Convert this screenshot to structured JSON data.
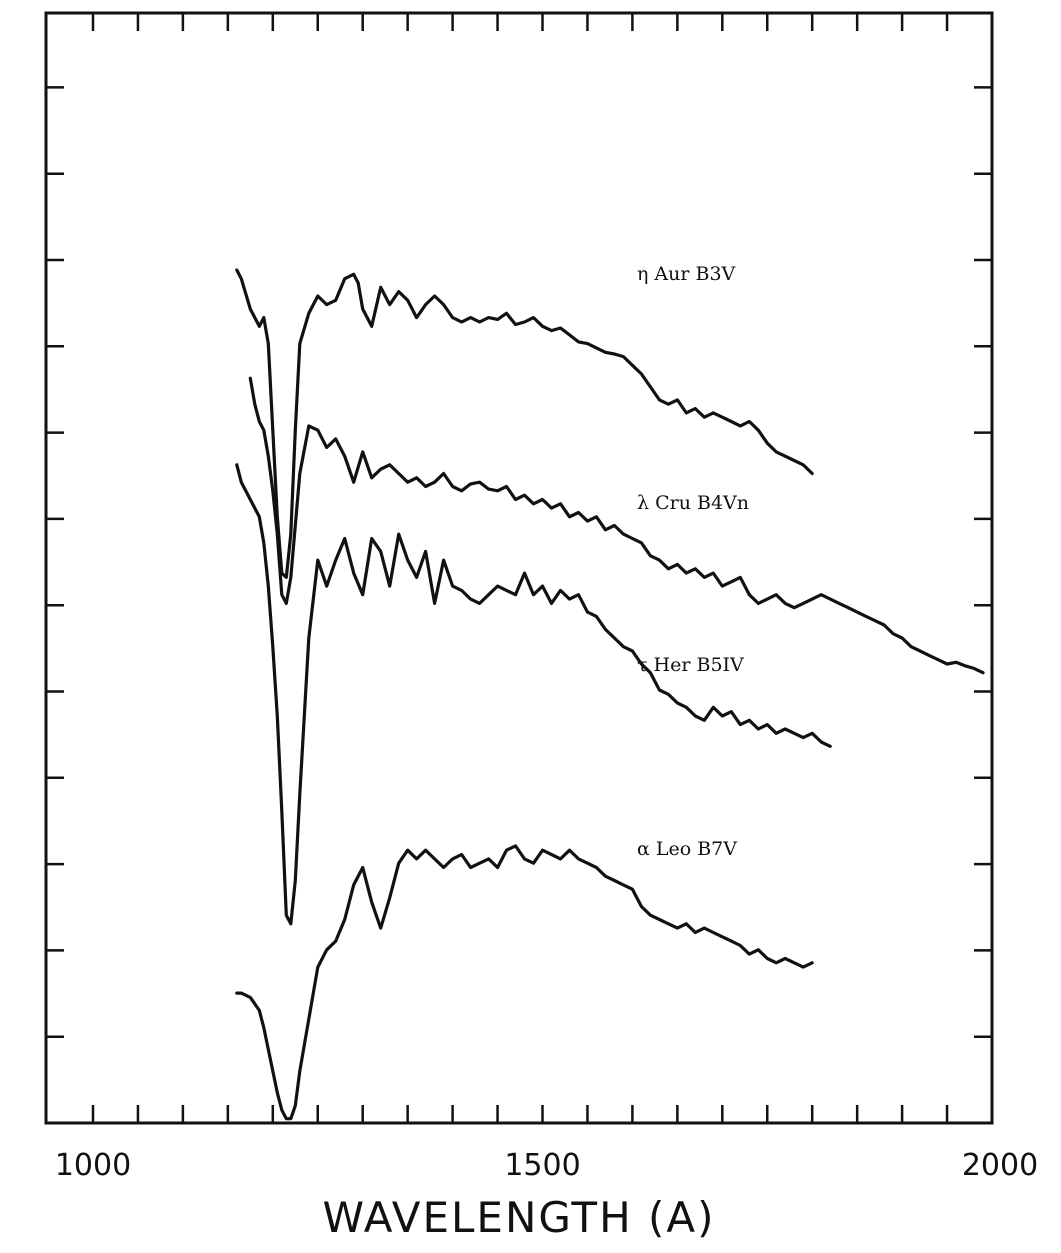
{
  "chart_data": {
    "type": "line",
    "title": "",
    "xlabel": "WAVELENGTH (A)",
    "ylabel": "",
    "xlim": [
      1000,
      2000
    ],
    "xticks_labeled": [
      1000,
      1500,
      2000
    ],
    "x_minor_tick_step": 50,
    "y_ticks": 12,
    "grid": false,
    "legend": "inline labels",
    "series": [
      {
        "name": "η Aur B3V",
        "x": [
          1160,
          1165,
          1175,
          1185,
          1190,
          1195,
          1200,
          1205,
          1210,
          1215,
          1220,
          1225,
          1230,
          1240,
          1250,
          1260,
          1270,
          1280,
          1290,
          1295,
          1300,
          1310,
          1320,
          1330,
          1340,
          1350,
          1360,
          1370,
          1380,
          1390,
          1400,
          1410,
          1420,
          1430,
          1440,
          1450,
          1460,
          1470,
          1480,
          1490,
          1500,
          1510,
          1520,
          1530,
          1540,
          1550,
          1560,
          1570,
          1580,
          1590,
          1600,
          1610,
          1620,
          1630,
          1640,
          1650,
          1660,
          1670,
          1680,
          1690,
          1700,
          1710,
          1720,
          1730,
          1740,
          1750,
          1760,
          1770,
          1780,
          1790,
          1800
        ],
        "y": [
          9.85,
          9.75,
          9.4,
          9.2,
          9.3,
          9.0,
          8.0,
          7.0,
          6.35,
          6.3,
          6.8,
          8.0,
          9.0,
          9.35,
          9.55,
          9.45,
          9.5,
          9.75,
          9.8,
          9.7,
          9.4,
          9.2,
          9.65,
          9.45,
          9.6,
          9.5,
          9.3,
          9.45,
          9.55,
          9.45,
          9.3,
          9.25,
          9.3,
          9.25,
          9.3,
          9.28,
          9.35,
          9.22,
          9.25,
          9.3,
          9.2,
          9.15,
          9.18,
          9.1,
          9.02,
          9.0,
          8.95,
          8.9,
          8.88,
          8.85,
          8.75,
          8.65,
          8.5,
          8.35,
          8.3,
          8.35,
          8.2,
          8.25,
          8.15,
          8.2,
          8.15,
          8.1,
          8.05,
          8.1,
          8.0,
          7.85,
          7.75,
          7.7,
          7.65,
          7.6,
          7.5
        ]
      },
      {
        "name": "λ Cru B4Vn",
        "x": [
          1175,
          1180,
          1185,
          1190,
          1195,
          1200,
          1205,
          1210,
          1215,
          1220,
          1225,
          1230,
          1240,
          1250,
          1260,
          1270,
          1280,
          1290,
          1300,
          1310,
          1320,
          1330,
          1340,
          1350,
          1360,
          1370,
          1380,
          1390,
          1400,
          1410,
          1420,
          1430,
          1440,
          1450,
          1460,
          1470,
          1480,
          1490,
          1500,
          1510,
          1520,
          1530,
          1540,
          1550,
          1560,
          1570,
          1580,
          1590,
          1600,
          1610,
          1620,
          1630,
          1640,
          1650,
          1660,
          1670,
          1680,
          1690,
          1700,
          1710,
          1720,
          1730,
          1740,
          1750,
          1760,
          1770,
          1780,
          1790,
          1800,
          1810,
          1820,
          1830,
          1840,
          1850,
          1860,
          1870,
          1880,
          1890,
          1900,
          1910,
          1920,
          1930,
          1940,
          1950,
          1960,
          1970,
          1980,
          1990
        ],
        "y": [
          8.6,
          8.3,
          8.1,
          8.0,
          7.7,
          7.3,
          6.8,
          6.1,
          6.0,
          6.3,
          6.9,
          7.5,
          8.05,
          8.0,
          7.8,
          7.9,
          7.7,
          7.4,
          7.75,
          7.45,
          7.55,
          7.6,
          7.5,
          7.4,
          7.45,
          7.35,
          7.4,
          7.5,
          7.35,
          7.3,
          7.38,
          7.4,
          7.32,
          7.3,
          7.35,
          7.2,
          7.25,
          7.15,
          7.2,
          7.1,
          7.15,
          7.0,
          7.05,
          6.95,
          7.0,
          6.85,
          6.9,
          6.8,
          6.75,
          6.7,
          6.55,
          6.5,
          6.4,
          6.45,
          6.35,
          6.4,
          6.3,
          6.35,
          6.2,
          6.25,
          6.3,
          6.1,
          6.0,
          6.05,
          6.1,
          6.0,
          5.95,
          6.0,
          6.05,
          6.1,
          6.05,
          6.0,
          5.95,
          5.9,
          5.85,
          5.8,
          5.75,
          5.65,
          5.6,
          5.5,
          5.45,
          5.4,
          5.35,
          5.3,
          5.32,
          5.28,
          5.25,
          5.2
        ]
      },
      {
        "name": "τ Her B5IV",
        "x": [
          1160,
          1165,
          1175,
          1185,
          1190,
          1195,
          1200,
          1205,
          1210,
          1215,
          1220,
          1225,
          1230,
          1240,
          1250,
          1260,
          1270,
          1280,
          1290,
          1300,
          1310,
          1320,
          1330,
          1340,
          1350,
          1360,
          1370,
          1380,
          1390,
          1400,
          1410,
          1420,
          1430,
          1440,
          1450,
          1460,
          1470,
          1480,
          1490,
          1500,
          1510,
          1520,
          1530,
          1540,
          1550,
          1560,
          1570,
          1580,
          1590,
          1600,
          1610,
          1620,
          1630,
          1640,
          1650,
          1660,
          1670,
          1680,
          1690,
          1700,
          1710,
          1720,
          1730,
          1740,
          1750,
          1760,
          1770,
          1780,
          1790,
          1800,
          1810,
          1820
        ],
        "y": [
          7.6,
          7.4,
          7.2,
          7.0,
          6.7,
          6.2,
          5.5,
          4.7,
          3.6,
          2.4,
          2.3,
          2.8,
          3.8,
          5.6,
          6.5,
          6.2,
          6.5,
          6.75,
          6.35,
          6.1,
          6.75,
          6.6,
          6.2,
          6.8,
          6.5,
          6.3,
          6.6,
          6.0,
          6.5,
          6.2,
          6.15,
          6.05,
          6.0,
          6.1,
          6.2,
          6.15,
          6.1,
          6.35,
          6.1,
          6.2,
          6.0,
          6.15,
          6.05,
          6.1,
          5.9,
          5.85,
          5.7,
          5.6,
          5.5,
          5.45,
          5.3,
          5.2,
          5.0,
          4.95,
          4.85,
          4.8,
          4.7,
          4.65,
          4.8,
          4.7,
          4.75,
          4.6,
          4.65,
          4.55,
          4.6,
          4.5,
          4.55,
          4.5,
          4.45,
          4.5,
          4.4,
          4.35
        ]
      },
      {
        "name": "α Leo B7V",
        "x": [
          1160,
          1165,
          1175,
          1185,
          1190,
          1195,
          1200,
          1205,
          1210,
          1215,
          1220,
          1225,
          1230,
          1240,
          1250,
          1260,
          1270,
          1280,
          1290,
          1300,
          1310,
          1320,
          1330,
          1340,
          1350,
          1360,
          1370,
          1380,
          1390,
          1400,
          1410,
          1420,
          1430,
          1440,
          1450,
          1460,
          1470,
          1480,
          1490,
          1500,
          1510,
          1520,
          1530,
          1540,
          1550,
          1560,
          1570,
          1580,
          1590,
          1600,
          1610,
          1620,
          1630,
          1640,
          1650,
          1660,
          1670,
          1680,
          1690,
          1700,
          1710,
          1720,
          1730,
          1740,
          1750,
          1760,
          1770,
          1780,
          1790,
          1800
        ],
        "y": [
          1.5,
          1.5,
          1.45,
          1.3,
          1.1,
          0.85,
          0.6,
          0.35,
          0.15,
          0.05,
          0.05,
          0.2,
          0.6,
          1.2,
          1.8,
          2.0,
          2.1,
          2.35,
          2.75,
          2.95,
          2.55,
          2.25,
          2.6,
          3.0,
          3.15,
          3.05,
          3.15,
          3.05,
          2.95,
          3.05,
          3.1,
          2.95,
          3.0,
          3.05,
          2.95,
          3.15,
          3.2,
          3.05,
          3.0,
          3.15,
          3.1,
          3.05,
          3.15,
          3.05,
          3.0,
          2.95,
          2.85,
          2.8,
          2.75,
          2.7,
          2.5,
          2.4,
          2.35,
          2.3,
          2.25,
          2.3,
          2.2,
          2.25,
          2.2,
          2.15,
          2.1,
          2.05,
          1.95,
          2.0,
          1.9,
          1.85,
          1.9,
          1.85,
          1.8,
          1.85
        ]
      }
    ]
  }
}
